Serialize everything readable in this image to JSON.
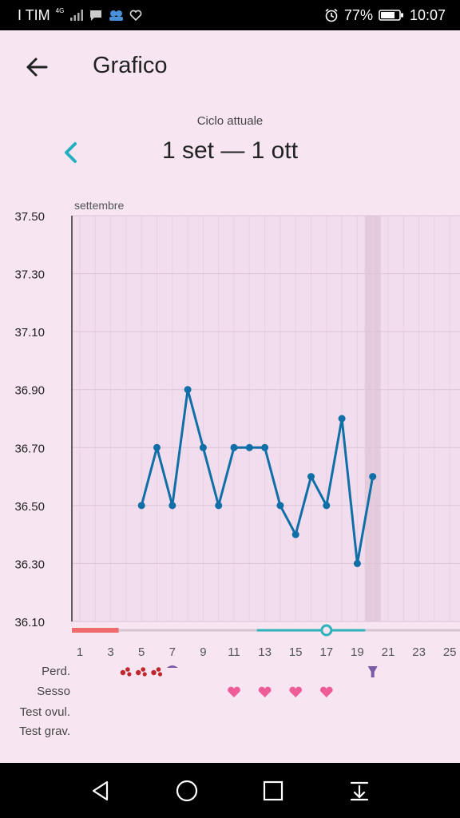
{
  "status_bar": {
    "carrier": "I TIM",
    "network": "4G",
    "battery": "77%",
    "time": "10:07"
  },
  "app_bar": {
    "title": "Grafico"
  },
  "cycle": {
    "label": "Ciclo attuale",
    "range": "1 set — 1 ott"
  },
  "chart_data": {
    "type": "line",
    "month_label": "settembre",
    "ylim": [
      36.1,
      37.5
    ],
    "y_ticks": [
      "37.50",
      "37.30",
      "37.10",
      "36.90",
      "36.70",
      "36.50",
      "36.30",
      "36.10"
    ],
    "x_ticks": [
      "1",
      "3",
      "5",
      "7",
      "9",
      "11",
      "13",
      "15",
      "17",
      "19",
      "21",
      "23",
      "25"
    ],
    "x": [
      5,
      6,
      7,
      8,
      9,
      10,
      11,
      12,
      13,
      14,
      15,
      16,
      17,
      18,
      19,
      20
    ],
    "values": [
      36.5,
      36.7,
      36.5,
      36.9,
      36.7,
      36.5,
      36.7,
      36.7,
      36.7,
      36.5,
      36.4,
      36.6,
      36.5,
      36.8,
      36.3,
      36.6
    ],
    "today_day": 20,
    "period_days": [
      1,
      3
    ],
    "fertile_days": [
      13,
      19
    ],
    "ovulation_day": 17,
    "line_color": "#0f6fa6",
    "period_color": "#f06b6b",
    "fertile_color": "#2fb3bb"
  },
  "rows": {
    "labels": [
      "Perd.",
      "Sesso",
      "Test ovul.",
      "Test grav."
    ],
    "spotting_days": [
      4,
      5,
      6
    ],
    "spotting_light_day": 7,
    "spotting_icon_day": 20,
    "sex_days": [
      11,
      13,
      15,
      17
    ],
    "heart_color": "#ee5d97"
  },
  "icons": {
    "back": "arrow-left-icon",
    "prev": "chevron-left-icon",
    "nav": [
      "back-triangle-icon",
      "home-circle-icon",
      "recents-square-icon",
      "notifications-pulldown-icon"
    ]
  }
}
